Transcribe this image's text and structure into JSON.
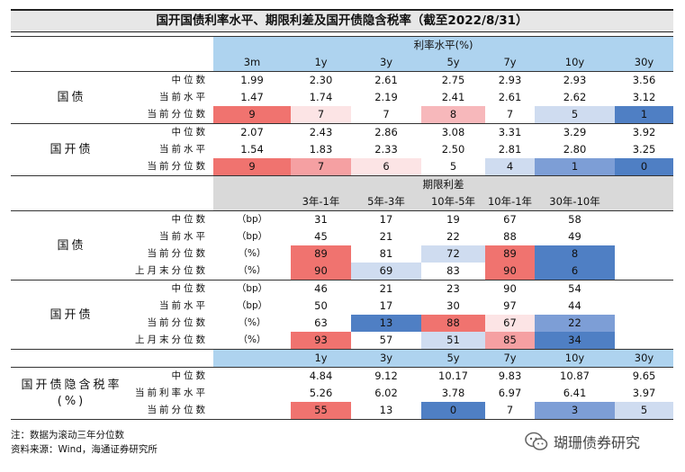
{
  "title": "国开国债利率水平、期限利差及国开债隐含税率（截至2022/8/31）",
  "s1": {
    "header": "利率水平(%)",
    "cols": [
      "3m",
      "1y",
      "3y",
      "5y",
      "7y",
      "10y",
      "30y"
    ],
    "groups": [
      {
        "label": "国债",
        "rows": [
          {
            "label": "中位数",
            "values": [
              "1.99",
              "2.30",
              "2.61",
              "2.75",
              "2.93",
              "2.93",
              "3.56"
            ]
          },
          {
            "label": "当前水平",
            "values": [
              "1.47",
              "1.74",
              "2.19",
              "2.41",
              "2.61",
              "2.62",
              "3.12"
            ]
          },
          {
            "label": "当前分位数",
            "values": [
              "9",
              "7",
              "7",
              "8",
              "7",
              "5",
              "1"
            ],
            "colors": [
              "#f0736f",
              "#fce4e5",
              "#ffffff",
              "#f7b8bb",
              "#ffffff",
              "#cfdcf0",
              "#4f7fc4"
            ]
          }
        ]
      },
      {
        "label": "国开债",
        "rows": [
          {
            "label": "中位数",
            "values": [
              "2.07",
              "2.43",
              "2.86",
              "3.08",
              "3.31",
              "3.29",
              "3.92"
            ]
          },
          {
            "label": "当前水平",
            "values": [
              "1.54",
              "1.83",
              "2.33",
              "2.50",
              "2.81",
              "2.80",
              "3.25"
            ]
          },
          {
            "label": "当前分位数",
            "values": [
              "9",
              "7",
              "6",
              "5",
              "4",
              "1",
              "0"
            ],
            "colors": [
              "#f0736f",
              "#f5a0a2",
              "#fce4e5",
              "#ffffff",
              "#cfdcf0",
              "#7d9ed6",
              "#4f7fc4"
            ]
          }
        ]
      }
    ]
  },
  "s2": {
    "header": "期限利差",
    "cols": [
      "3年-1年",
      "5年-3年",
      "10年-5年",
      "10年-1年",
      "30年-10年"
    ],
    "groups": [
      {
        "label": "国债",
        "rows": [
          {
            "label": "中位数",
            "unit": "（bp）",
            "values": [
              "31",
              "17",
              "19",
              "67",
              "58"
            ]
          },
          {
            "label": "当前水平",
            "unit": "（bp）",
            "values": [
              "45",
              "21",
              "22",
              "88",
              "49"
            ]
          },
          {
            "label": "当前分位数",
            "unit": "（%）",
            "values": [
              "89",
              "81",
              "72",
              "89",
              "8"
            ],
            "colors": [
              "#f0736f",
              "#ffffff",
              "#cfdcf0",
              "#f0736f",
              "#4f7fc4"
            ]
          },
          {
            "label": "上月末分位数",
            "unit": "（%）",
            "values": [
              "90",
              "69",
              "83",
              "90",
              "6"
            ],
            "colors": [
              "#f0736f",
              "#cfdcf0",
              "#ffffff",
              "#f0736f",
              "#4f7fc4"
            ]
          }
        ]
      },
      {
        "label": "国开债",
        "rows": [
          {
            "label": "中位数",
            "unit": "（bp）",
            "values": [
              "46",
              "21",
              "23",
              "90",
              "54"
            ]
          },
          {
            "label": "当前水平",
            "unit": "（bp）",
            "values": [
              "50",
              "17",
              "30",
              "97",
              "44"
            ]
          },
          {
            "label": "当前分位数",
            "unit": "（%）",
            "values": [
              "63",
              "13",
              "88",
              "67",
              "22"
            ],
            "colors": [
              "#ffffff",
              "#4f7fc4",
              "#f0736f",
              "#fce4e5",
              "#7d9ed6"
            ]
          },
          {
            "label": "上月末分位数",
            "unit": "（%）",
            "values": [
              "93",
              "57",
              "51",
              "85",
              "34"
            ],
            "colors": [
              "#f0736f",
              "#ffffff",
              "#cfdcf0",
              "#f5a0a2",
              "#4f7fc4"
            ]
          }
        ]
      }
    ]
  },
  "s3": {
    "label_line1": "国开债隐含税率",
    "label_line2": "(%)",
    "cols": [
      "1y",
      "3y",
      "5y",
      "7y",
      "10y",
      "30y"
    ],
    "rows": [
      {
        "label": "中位数",
        "values": [
          "4.84",
          "9.12",
          "10.17",
          "9.83",
          "10.87",
          "9.65"
        ]
      },
      {
        "label": "当前利率水平",
        "values": [
          "5.26",
          "6.02",
          "3.78",
          "6.97",
          "6.41",
          "3.97"
        ]
      },
      {
        "label": "当前分位数",
        "values": [
          "55",
          "13",
          "0",
          "7",
          "3",
          "5"
        ],
        "colors": [
          "#f0736f",
          "#ffffff",
          "#4f7fc4",
          "#ffffff",
          "#7d9ed6",
          "#cfdcf0"
        ]
      }
    ]
  },
  "notes": [
    "注：数据为滚动三年分位数",
    "资料来源：Wind，海通证券研究所"
  ],
  "watermark": "瑚珊债券研究"
}
